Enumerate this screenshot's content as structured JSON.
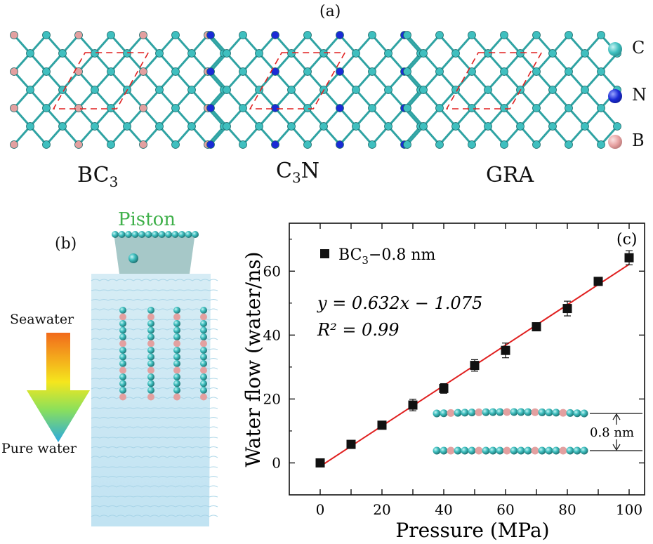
{
  "panel_a": {
    "label": "(a)",
    "sheets": [
      {
        "name": "BC",
        "sub": "3",
        "suffix": ""
      },
      {
        "name": "C",
        "sub": "3",
        "suffix": "N"
      },
      {
        "name": "GRA",
        "sub": "",
        "suffix": ""
      }
    ],
    "legend": [
      {
        "label": "C",
        "color": "#3fbfbf"
      },
      {
        "label": "N",
        "color": "#1a2bd6"
      },
      {
        "label": "B",
        "color": "#e8a3a3"
      }
    ]
  },
  "panel_b": {
    "label": "(b)",
    "piston": "Piston",
    "seawater": "Seawater",
    "pure_water": "Pure water"
  },
  "chart_data": {
    "type": "scatter",
    "panel_label": "(c)",
    "xlabel": "Pressure (MPa)",
    "ylabel": "Water flow (water/ns)",
    "xlim": [
      -10,
      105
    ],
    "ylim": [
      -10,
      75
    ],
    "xticks": [
      0,
      10,
      20,
      30,
      40,
      50,
      60,
      70,
      80,
      90,
      100
    ],
    "xtick_labels": [
      "0",
      "20",
      "40",
      "60",
      "80",
      "100"
    ],
    "yticks": [
      0,
      20,
      40,
      60
    ],
    "legend_prefix": "BC",
    "legend_sub": "3",
    "legend_suffix": "−0.8 nm",
    "series": [
      {
        "name": "BC3−0.8 nm",
        "x": [
          0,
          10,
          20,
          30,
          40,
          50,
          60,
          70,
          80,
          90,
          100
        ],
        "y": [
          0,
          5.8,
          11.8,
          18.1,
          23.3,
          30.5,
          35.2,
          42.6,
          48.3,
          56.8,
          64.2
        ],
        "err": [
          0.5,
          0.8,
          0.8,
          1.8,
          1.5,
          1.8,
          2.3,
          1.0,
          2.3,
          0.8,
          2.2
        ]
      }
    ],
    "fit": {
      "slope": 0.632,
      "intercept": -1.075,
      "color": "#e02020"
    },
    "equation": "y = 0.632x − 1.075",
    "r2": "R² = 0.99",
    "inset_label": "0.8 nm"
  }
}
